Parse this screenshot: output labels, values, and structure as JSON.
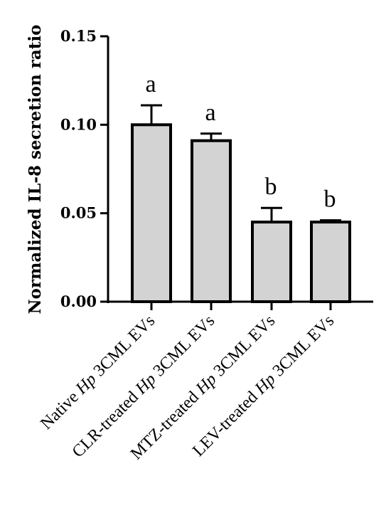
{
  "chart_data": {
    "type": "bar",
    "ylabel": "Normalized IL-8 secretion ratio",
    "ylim": [
      0,
      0.15
    ],
    "yticks": [
      "0.00",
      "0.05",
      "0.10",
      "0.15"
    ],
    "ytick_values": [
      0,
      0.05,
      0.1,
      0.15
    ],
    "grid": false,
    "bar_color": "#d3d3d3",
    "categories": [
      {
        "pre": "Native ",
        "italic": "Hp",
        "post": " 3CML EVs"
      },
      {
        "pre": "CLR-treated ",
        "italic": "Hp",
        "post": " 3CML EVs"
      },
      {
        "pre": "MTZ-treated ",
        "italic": "Hp",
        "post": " 3CML EVs"
      },
      {
        "pre": "LEV-treated ",
        "italic": "Hp",
        "post": " 3CML EVs"
      }
    ],
    "values": [
      0.1,
      0.091,
      0.045,
      0.045
    ],
    "errors": [
      0.011,
      0.004,
      0.008,
      0.001
    ],
    "significance": [
      "a",
      "a",
      "b",
      "b"
    ]
  }
}
